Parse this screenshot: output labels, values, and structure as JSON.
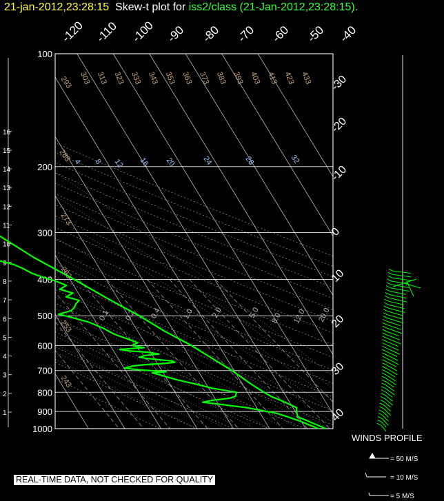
{
  "title": {
    "timestamp": "21-jan-2012,23:28:15",
    "label": "  Skew-t plot for ",
    "platform": "iss2/class (21-Jan-2012,23:28:15)",
    "period": ".",
    "colors": {
      "timestamp": "#ffff33",
      "label": "#ffffff",
      "platform": "#33ff33"
    }
  },
  "quality_note": "REAL-TIME DATA, NOT CHECKED FOR QUALITY",
  "chart_data": {
    "type": "line",
    "diagram": "skew-t",
    "y_axis": {
      "scale": "log",
      "pressure_ticks": [
        100,
        200,
        300,
        400,
        500,
        600,
        700,
        800,
        900,
        1000
      ],
      "ylim": [
        100,
        1000
      ]
    },
    "height_ticks_km": [
      1,
      2,
      3,
      4,
      5,
      6,
      7,
      8,
      9,
      10,
      11,
      12,
      13,
      14,
      15,
      16
    ],
    "isotherm_labels_top": [
      -120,
      -110,
      -100,
      -90,
      -80,
      -70,
      -60,
      -50,
      -40
    ],
    "isotherm_labels_right": [
      -30,
      -20,
      -10,
      0,
      10,
      20,
      30,
      40
    ],
    "dry_adiabat_labels": [
      303,
      313,
      323,
      333,
      343,
      353,
      363,
      373,
      383,
      393,
      403,
      413,
      423,
      433
    ],
    "dry_adiabat_left_labels": [
      293,
      283,
      273,
      263,
      253,
      243
    ],
    "moist_adiabat_labels": [
      4,
      8,
      12,
      16,
      20,
      24,
      28,
      32
    ],
    "mixing_ratio_labels": [
      "0.1",
      "0.2",
      "0.4",
      "1.0",
      "2.0",
      "5.0",
      "8.0",
      "12.0",
      "20.0"
    ],
    "temperature_profile": {
      "color": "#00ff00",
      "points": [
        [
          1000,
          15.5
        ],
        [
          950,
          11.5
        ],
        [
          930,
          9.8
        ],
        [
          900,
          10.3
        ],
        [
          880,
          11.0
        ],
        [
          860,
          9.5
        ],
        [
          840,
          7.8
        ],
        [
          820,
          5.8
        ],
        [
          800,
          4.6
        ],
        [
          760,
          2.4
        ],
        [
          700,
          -0.6
        ],
        [
          650,
          -4.0
        ],
        [
          600,
          -7.6
        ],
        [
          550,
          -12.5
        ],
        [
          500,
          -17.0
        ],
        [
          450,
          -22.8
        ],
        [
          400,
          -28.8
        ],
        [
          350,
          -36.2
        ],
        [
          300,
          -43.0
        ],
        [
          250,
          -52.5
        ],
        [
          200,
          -61.5
        ],
        [
          175,
          -65.0
        ],
        [
          150,
          -69.0
        ],
        [
          125,
          -72.5
        ],
        [
          110,
          -74.5
        ],
        [
          100,
          -76.5
        ]
      ]
    },
    "dewpoint_profile": {
      "color": "#00ff00",
      "points": [
        [
          1000,
          13.5
        ],
        [
          970,
          11.0
        ],
        [
          950,
          9.2
        ],
        [
          930,
          7.0
        ],
        [
          910,
          4.5
        ],
        [
          895,
          1.0
        ],
        [
          880,
          -2.5
        ],
        [
          860,
          -10.0
        ],
        [
          850,
          -14.0
        ],
        [
          840,
          -11.0
        ],
        [
          830,
          -6.0
        ],
        [
          820,
          -4.0
        ],
        [
          800,
          -3.0
        ],
        [
          780,
          -9.0
        ],
        [
          760,
          -13.0
        ],
        [
          740,
          -17.5
        ],
        [
          720,
          -21.0
        ],
        [
          710,
          -23.0
        ],
        [
          705,
          -19.0
        ],
        [
          698,
          -25.0
        ],
        [
          690,
          -30.0
        ],
        [
          680,
          -27.0
        ],
        [
          675,
          -23.5
        ],
        [
          670,
          -18.0
        ],
        [
          665,
          -15.0
        ],
        [
          660,
          -15.5
        ],
        [
          655,
          -19.0
        ],
        [
          650,
          -22.0
        ],
        [
          645,
          -24.0
        ],
        [
          638,
          -22.0
        ],
        [
          632,
          -18.0
        ],
        [
          625,
          -21.0
        ],
        [
          620,
          -26.0
        ],
        [
          615,
          -28.0
        ],
        [
          608,
          -21.0
        ],
        [
          600,
          -24.0
        ],
        [
          590,
          -22.0
        ],
        [
          580,
          -23.5
        ],
        [
          560,
          -27.0
        ],
        [
          540,
          -29.0
        ],
        [
          520,
          -32.0
        ],
        [
          505,
          -36.0
        ],
        [
          495,
          -39.0
        ],
        [
          485,
          -35.0
        ],
        [
          475,
          -33.5
        ],
        [
          465,
          -32.5
        ],
        [
          455,
          -31.0
        ],
        [
          445,
          -34.0
        ],
        [
          435,
          -31.5
        ],
        [
          425,
          -34.5
        ],
        [
          415,
          -32.0
        ],
        [
          405,
          -34.0
        ],
        [
          395,
          -37.0
        ],
        [
          385,
          -39.5
        ],
        [
          375,
          -41.0
        ],
        [
          365,
          -43.0
        ],
        [
          355,
          -47.0
        ],
        [
          345,
          -49.0
        ],
        [
          335,
          -50.0
        ],
        [
          325,
          -52.0
        ],
        [
          315,
          -49.0
        ],
        [
          300,
          -48.5
        ],
        [
          280,
          -53.0
        ],
        [
          260,
          -59.0
        ],
        [
          240,
          -63.5
        ],
        [
          220,
          -67.0
        ],
        [
          200,
          -70.0
        ],
        [
          175,
          -74.0
        ],
        [
          150,
          -78.0
        ],
        [
          125,
          -81.5
        ],
        [
          110,
          -83.5
        ],
        [
          100,
          -86.0
        ]
      ]
    },
    "wind_profile": {
      "label": "WINDS PROFILE",
      "color": "#00ff00",
      "pressure_range_hpa": [
        380,
        980
      ],
      "legend": [
        {
          "label": "= 50 M/S",
          "symbol": "pennant"
        },
        {
          "label": "= 10 M/S",
          "symbol": "full-barb"
        },
        {
          "label": "= 5 M/S",
          "symbol": "half-barb"
        }
      ]
    }
  }
}
